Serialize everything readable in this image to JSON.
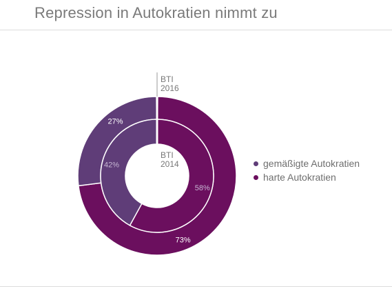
{
  "title": "Repression in Autokratien nimmt zu",
  "legend": [
    {
      "label": "gemäßigte Autokratien",
      "color": "#5f3d78"
    },
    {
      "label": "harte Autokratien",
      "color": "#6b0f5e"
    }
  ],
  "chart_data": {
    "type": "pie",
    "variant": "nested-donut",
    "categories": [
      "gemäßigte Autokratien",
      "harte Autokratien"
    ],
    "series": [
      {
        "name": "BTI 2016",
        "ring": "outer",
        "label_lines": [
          "BTI",
          "2016"
        ],
        "values": [
          27,
          73
        ],
        "labels": [
          "27%",
          "73%"
        ]
      },
      {
        "name": "BTI 2014",
        "ring": "inner",
        "label_lines": [
          "BTI",
          "2014"
        ],
        "values": [
          42,
          58
        ],
        "labels": [
          "42%",
          "58%"
        ]
      }
    ],
    "colors": [
      "#5f3d78",
      "#6b0f5e"
    ],
    "legend_position": "right"
  }
}
